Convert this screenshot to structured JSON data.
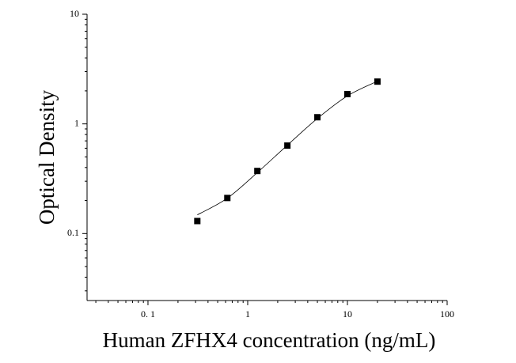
{
  "chart_data": {
    "type": "scatter",
    "x_label": "Human ZFHX4 concentration (ng/mL)",
    "y_label": "Optical Density",
    "x_log": true,
    "y_log": true,
    "xlim": [
      0.0245,
      100
    ],
    "ylim": [
      0.0245,
      10
    ],
    "xticks": [
      {
        "value": 0.1,
        "label": "0. 1"
      },
      1,
      10,
      100
    ],
    "yticks": [
      {
        "value": 0.1,
        "label": "0.1"
      },
      1,
      10
    ],
    "series": [
      {
        "marker": "square",
        "color": "#000000",
        "x": [
          0.3125,
          0.625,
          1.25,
          2.5,
          5,
          10,
          20
        ],
        "values": [
          0.13,
          0.211,
          0.372,
          0.634,
          1.15,
          1.87,
          2.43
        ]
      },
      {
        "marker": "line",
        "color": "#000000",
        "x": [
          0.3125,
          0.625,
          1.25,
          2.5,
          5,
          10,
          20
        ],
        "values": [
          0.148,
          0.21,
          0.36,
          0.64,
          1.12,
          1.8,
          2.45
        ]
      }
    ]
  }
}
